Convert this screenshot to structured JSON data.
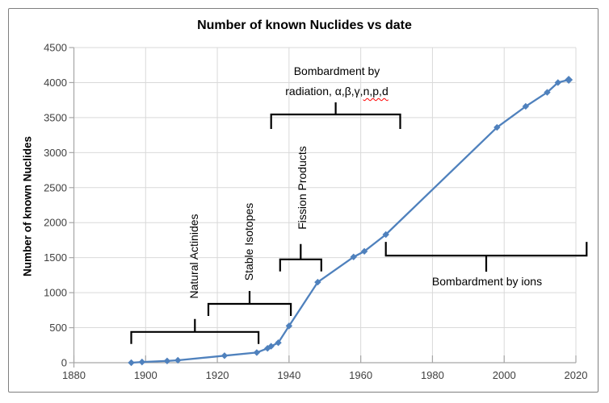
{
  "figure": {
    "background": "#ffffff",
    "border_color": "#7f7f7f"
  },
  "chart_data": {
    "type": "line",
    "title": "Number of known Nuclides vs date",
    "xlabel": "",
    "ylabel": "Number of known Nuclides",
    "xlim": [
      1880,
      2020
    ],
    "ylim": [
      0,
      4500
    ],
    "x_ticks": [
      1880,
      1900,
      1920,
      1940,
      1960,
      1980,
      2000,
      2020
    ],
    "y_ticks": [
      0,
      500,
      1000,
      1500,
      2000,
      2500,
      3000,
      3500,
      4000,
      4500
    ],
    "grid": true,
    "legend": false,
    "series": [
      {
        "name": "Number of known Nuclides",
        "color": "#4F81BD",
        "marker": "diamond",
        "points": [
          [
            1896,
            0
          ],
          [
            1899,
            10
          ],
          [
            1906,
            25
          ],
          [
            1909,
            35
          ],
          [
            1922,
            100
          ],
          [
            1931,
            145
          ],
          [
            1934,
            205
          ],
          [
            1935,
            235
          ],
          [
            1937,
            285
          ],
          [
            1940,
            525
          ],
          [
            1948,
            1150
          ],
          [
            1958,
            1510
          ],
          [
            1961,
            1590
          ],
          [
            1967,
            1830
          ],
          [
            1998,
            3360
          ],
          [
            2006,
            3660
          ],
          [
            2012,
            3860
          ],
          [
            2015,
            4000
          ],
          [
            2018,
            4040
          ]
        ]
      }
    ],
    "annotations": [
      {
        "id": "natural-actinides",
        "label": "Natural Actinides",
        "orientation": "vertical",
        "year_start": 1896,
        "year_end": 1931.5,
        "bar_value": 440,
        "tick_dir": "down",
        "tick_len": 15,
        "stem_len": 16
      },
      {
        "id": "stable-isotopes",
        "label": "Stable Isotopes",
        "orientation": "vertical",
        "year_start": 1917.5,
        "year_end": 1940.5,
        "bar_value": 840,
        "tick_dir": "down",
        "tick_len": 15,
        "stem_len": 16
      },
      {
        "id": "fission-products",
        "label": "Fission Products",
        "orientation": "vertical",
        "year_start": 1937.5,
        "year_end": 1949,
        "bar_value": 1475,
        "tick_dir": "down",
        "tick_len": 15,
        "stem_len": 19
      },
      {
        "id": "bombardment-radiation",
        "label_line1": "Bombardment by",
        "label_line2_prefix": "radiation, α,β,γ,",
        "label_line2_misspelled": "n,p,d",
        "orientation": "horizontal",
        "year_start": 1935,
        "year_end": 1971,
        "bar_value": 3545,
        "tick_dir": "down",
        "tick_len": 18,
        "stem_len": 15
      },
      {
        "id": "bombardment-ions",
        "label": "Bombardment by ions",
        "orientation": "horizontal",
        "year_start": 1967,
        "year_end": 2023,
        "bar_value": 1530,
        "tick_dir": "up",
        "tick_len": 17,
        "stem_len": 20
      }
    ],
    "colors": {
      "line": "#4F81BD",
      "gridline": "#D9D9D9",
      "axis": "#A6A6A6",
      "tick_label": "#3F3F3F",
      "annotation_text": "#000000",
      "brace": "#000000",
      "spellcheck_underline": "#FF0000"
    }
  }
}
